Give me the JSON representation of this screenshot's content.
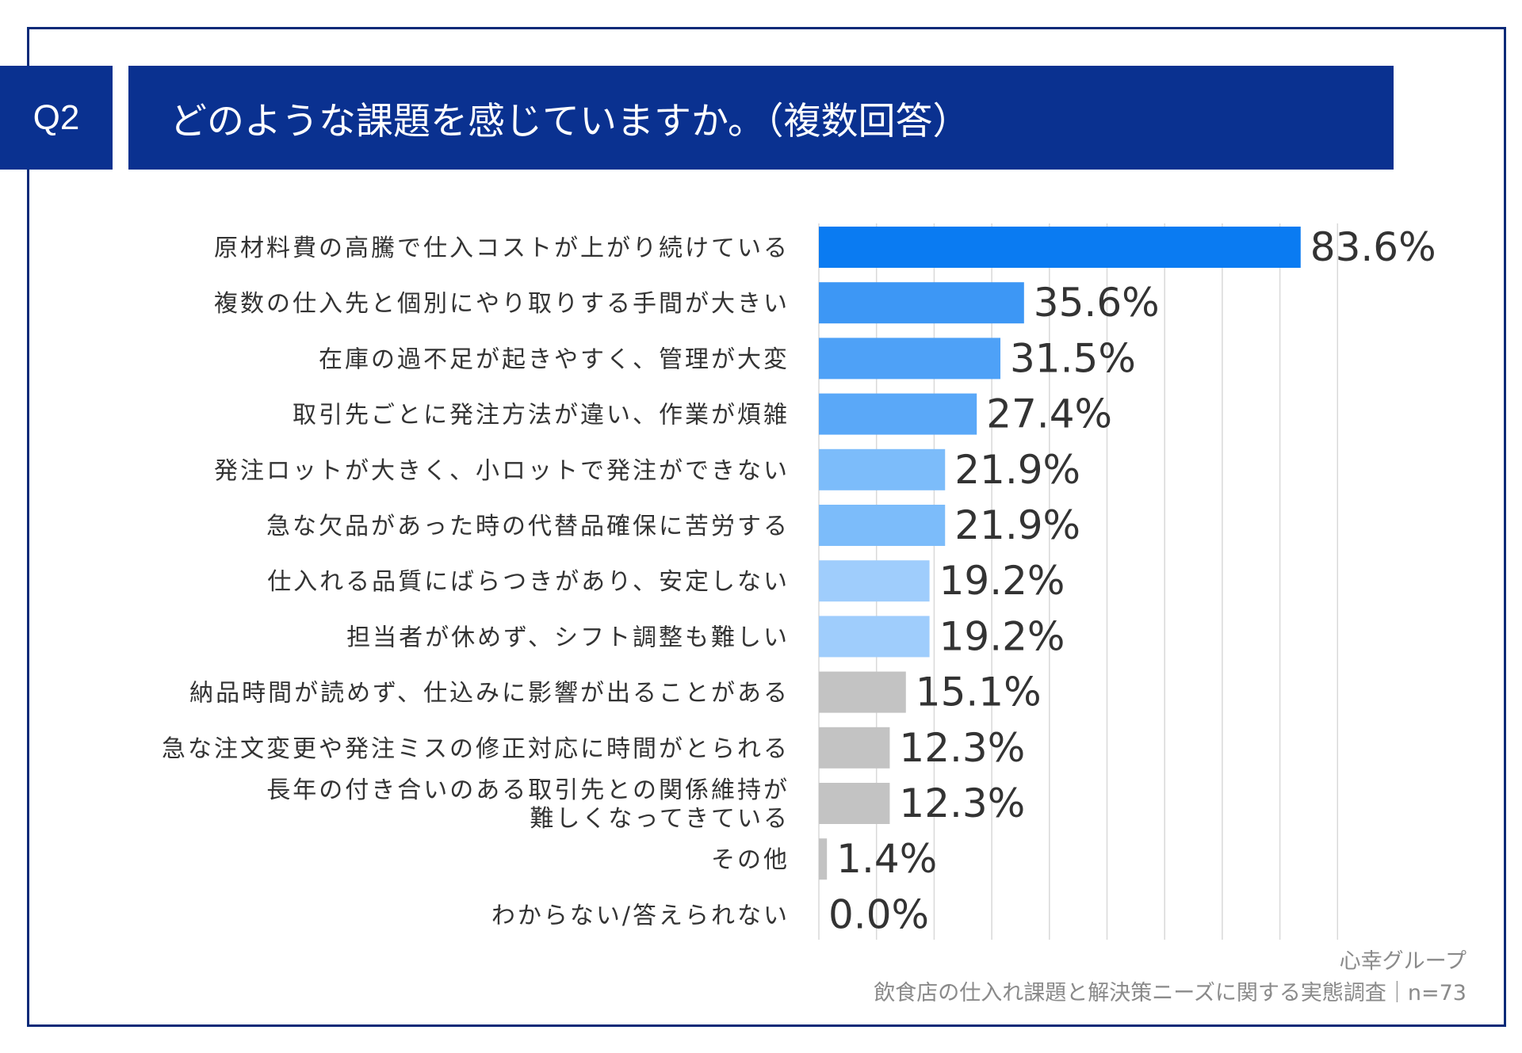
{
  "header": {
    "question_id": "Q2",
    "title": "どのような課題を感じていますか。（複数回答）"
  },
  "chart_data": {
    "type": "bar",
    "orientation": "horizontal",
    "title": "どのような課題を感じていますか。（複数回答）",
    "xlim": [
      0,
      90
    ],
    "grid": true,
    "categories": [
      "原材料費の高騰で仕入コストが上がり続けている",
      "複数の仕入先と個別にやり取りする手間が大きい",
      "在庫の過不足が起きやすく、管理が大変",
      "取引先ごとに発注方法が違い、作業が煩雑",
      "発注ロットが大きく、小ロットで発注ができない",
      "急な欠品があった時の代替品確保に苦労する",
      "仕入れる品質にばらつきがあり、安定しない",
      "担当者が休めず、シフト調整も難しい",
      "納品時間が読めず、仕込みに影響が出ることがある",
      "急な注文変更や発注ミスの修正対応に時間がとられる",
      "長年の付き合いのある取引先との関係維持が\n難しくなってきている",
      "その他",
      "わからない/答えられない"
    ],
    "values": [
      83.6,
      35.6,
      31.5,
      27.4,
      21.9,
      21.9,
      19.2,
      19.2,
      15.1,
      12.3,
      12.3,
      1.4,
      0.0
    ],
    "value_labels": [
      "83.6%",
      "35.6%",
      "31.5%",
      "27.4%",
      "21.9%",
      "21.9%",
      "19.2%",
      "19.2%",
      "15.1%",
      "12.3%",
      "12.3%",
      "1.4%",
      "0.0%"
    ],
    "bar_colors": [
      "#0a7bf2",
      "#3d97f5",
      "#4ea1f7",
      "#5aa8f8",
      "#7cbcfa",
      "#7cbcfa",
      "#9fcdfc",
      "#9fcdfc",
      "#c3c3c3",
      "#c3c3c3",
      "#c3c3c3",
      "#c3c3c3",
      "#c3c3c3"
    ]
  },
  "footer": {
    "line1": "心幸グループ",
    "line2": "飲食店の仕入れ課題と解決策ニーズに関する実態調査｜n=73"
  },
  "colors": {
    "navy": "#0a3190",
    "frame": "#0a2a78",
    "grid": "#d9d9d9",
    "label_text": "#333333",
    "value_text": "#333333"
  }
}
